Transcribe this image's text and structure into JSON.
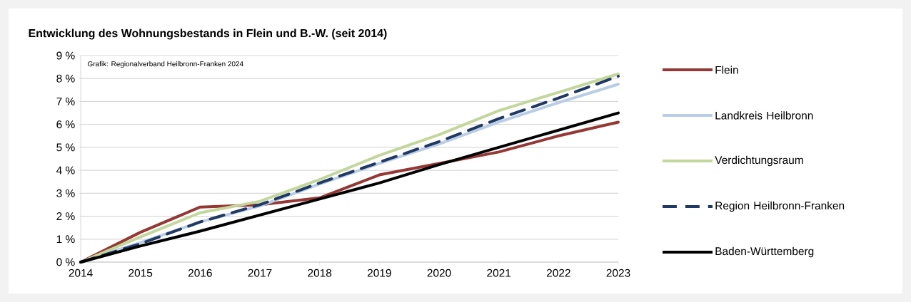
{
  "chart_data": {
    "type": "line",
    "title": "Entwicklung des Wohnungsbestands in Flein und B.-W. (seit 2014)",
    "x": [
      2014,
      2015,
      2016,
      2017,
      2018,
      2019,
      2020,
      2021,
      2022,
      2023
    ],
    "series": [
      {
        "name": "Flein",
        "color": "#953735",
        "values": [
          0,
          1.3,
          2.4,
          2.5,
          2.8,
          3.8,
          4.3,
          4.8,
          5.5,
          6.1
        ]
      },
      {
        "name": "Landkreis Heilbronn",
        "color": "#b9cde5",
        "values": [
          0,
          0.85,
          1.75,
          2.45,
          3.4,
          4.3,
          5.15,
          6.1,
          6.95,
          7.75
        ]
      },
      {
        "name": "Verdichtungsraum",
        "color": "#c3d69b",
        "values": [
          0,
          1.1,
          2.15,
          2.65,
          3.6,
          4.65,
          5.55,
          6.6,
          7.4,
          8.2
        ]
      },
      {
        "name": "Region Heilbronn-Franken",
        "color": "#1f3864",
        "line_style": "dashed",
        "values": [
          0,
          0.8,
          1.75,
          2.5,
          3.45,
          4.35,
          5.25,
          6.25,
          7.15,
          8.1
        ]
      },
      {
        "name": "Baden-Württemberg",
        "color": "#000000",
        "values": [
          0,
          0.7,
          1.35,
          2.05,
          2.75,
          3.45,
          4.25,
          5.0,
          5.75,
          6.5
        ]
      }
    ],
    "xlim": [
      2014,
      2023
    ],
    "xticks": [
      2014,
      2015,
      2016,
      2017,
      2018,
      2019,
      2020,
      2021,
      2022,
      2023
    ],
    "ylim": [
      0,
      9
    ],
    "yticks": [
      {
        "value": 0,
        "label": "0 %"
      },
      {
        "value": 1,
        "label": "1 %"
      },
      {
        "value": 2,
        "label": "2 %"
      },
      {
        "value": 3,
        "label": "3 %"
      },
      {
        "value": 4,
        "label": "4 %"
      },
      {
        "value": 5,
        "label": "5 %"
      },
      {
        "value": 6,
        "label": "6 %"
      },
      {
        "value": 7,
        "label": "7 %"
      },
      {
        "value": 8,
        "label": "8 %"
      },
      {
        "value": 9,
        "label": "9 %"
      }
    ],
    "grid": "y",
    "legend": "right",
    "marker": "none",
    "line_style": "solid",
    "annotations": [
      "Grafik: Regionalverband Heilbronn-Franken 2024"
    ]
  }
}
